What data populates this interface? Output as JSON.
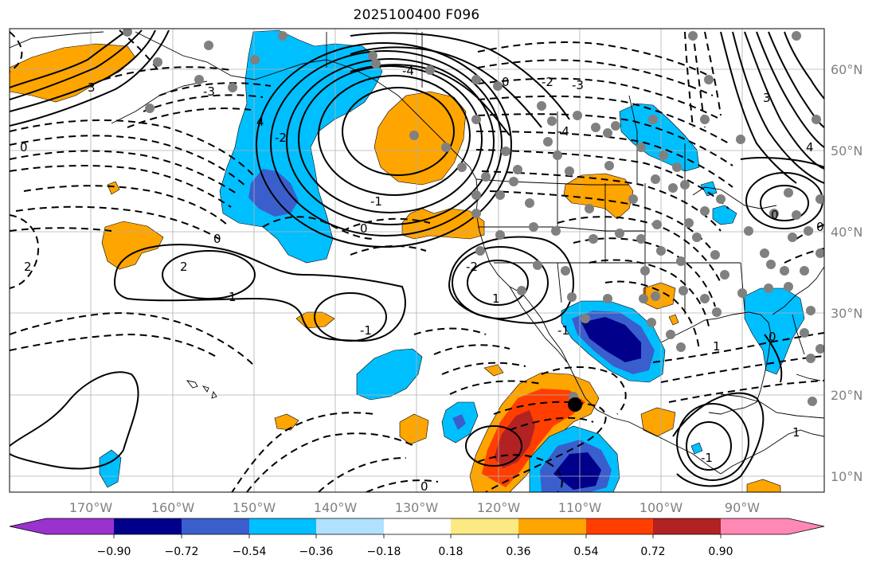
{
  "title": "2025100400 F096",
  "map": {
    "lon_ticks": [
      "170°W",
      "160°W",
      "150°W",
      "140°W",
      "130°W",
      "120°W",
      "110°W",
      "100°W",
      "90°W"
    ],
    "lat_ticks": [
      "60°N",
      "50°N",
      "40°N",
      "30°N",
      "20°N",
      "10°N"
    ],
    "contour_labels": [
      "0",
      "2",
      "1",
      "-1",
      "0",
      "-4",
      "-2",
      "-3",
      "4",
      "3",
      "0",
      "-1",
      "2",
      "-2",
      "1",
      "-4",
      "0",
      "4",
      "3",
      "0",
      "0",
      "1",
      "0",
      "-1",
      "0",
      "-3",
      "1",
      "-2",
      "-1"
    ]
  },
  "colorbar": {
    "colors": [
      "#9a32cd",
      "#00008b",
      "#3a5fcd",
      "#00bfff",
      "#b0e2ff",
      "#ffffff",
      "#fbe983",
      "#ffa500",
      "#ff3e00",
      "#b22222",
      "#ff88b4"
    ],
    "labels": [
      "−0.90",
      "−0.72",
      "−0.54",
      "−0.36",
      "−0.18",
      "0.18",
      "0.36",
      "0.54",
      "0.72",
      "0.90"
    ]
  }
}
